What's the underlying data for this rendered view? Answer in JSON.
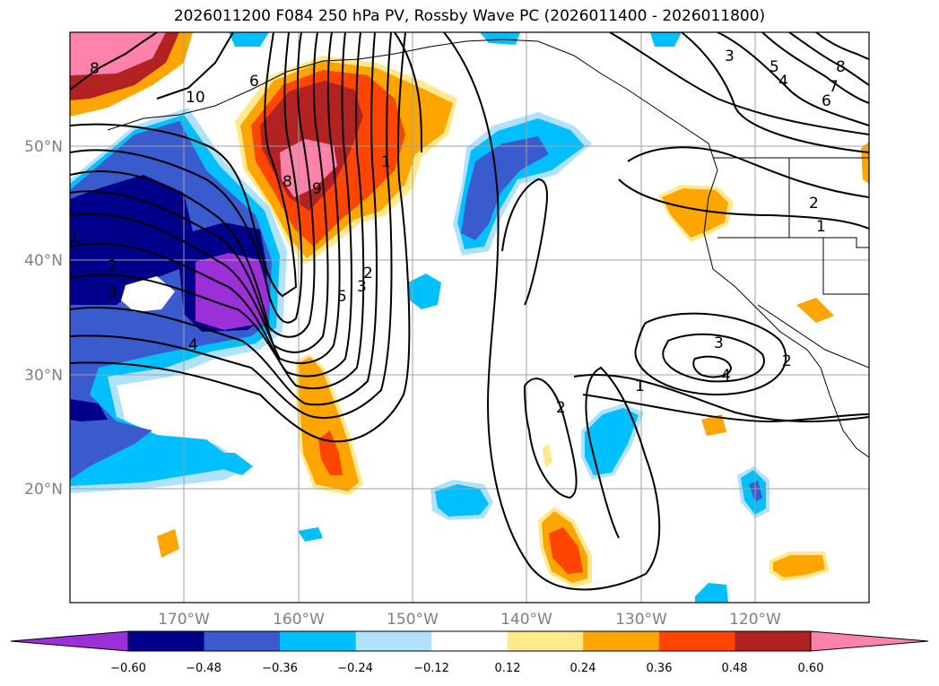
{
  "title": "2026011200 F084 250 hPa PV, Rossby Wave PC (2026011400 - 2026011800)",
  "map": {
    "lat_labels": [
      "50°N",
      "40°N",
      "30°N",
      "20°N"
    ],
    "lon_labels": [
      "170°W",
      "160°W",
      "150°W",
      "140°W",
      "130°W",
      "120°W"
    ],
    "contour_labels": [
      "8",
      "10",
      "6",
      "9",
      "8",
      "1",
      "1",
      "2",
      "3",
      "4",
      "2",
      "3",
      "5",
      "3",
      "5",
      "4",
      "8",
      "7",
      "6",
      "2",
      "1",
      "3",
      "4",
      "2",
      "1",
      "2"
    ]
  },
  "colorbar": {
    "colors": [
      "#9b30d9",
      "#00008b",
      "#3a5bcd",
      "#00bfff",
      "#b0e2ff",
      "#ffffff",
      "#ffe98c",
      "#ffa500",
      "#ff4500",
      "#b22222",
      "#ff82ab"
    ],
    "tick_labels": [
      "−0.60",
      "−0.48",
      "−0.36",
      "−0.24",
      "−0.12",
      "0.12",
      "0.24",
      "0.36",
      "0.48",
      "0.60"
    ]
  }
}
